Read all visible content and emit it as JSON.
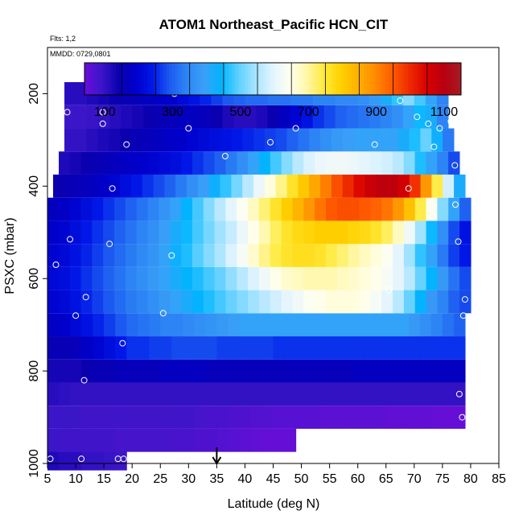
{
  "chart_data": {
    "type": "heatmap",
    "title": "ATOM1 Northeast_Pacific HCN_CIT",
    "flights_label": "Flts: 1,2",
    "date_label": "MMDD: 0729,0801",
    "xlabel": "Latitude (deg N)",
    "ylabel": "PSXC (mbar)",
    "xlim": [
      5,
      85
    ],
    "ylim": [
      1000,
      100
    ],
    "x_ticks": [
      5,
      10,
      15,
      20,
      25,
      30,
      35,
      40,
      45,
      50,
      55,
      60,
      65,
      70,
      75,
      80,
      85
    ],
    "y_ticks": [
      200,
      400,
      600,
      800,
      1000
    ],
    "y_tick_labels": [
      "200",
      "400",
      "600",
      "800",
      "1000"
    ],
    "marker_latitude": 35,
    "colorbar": {
      "range": [
        40,
        1150
      ],
      "tick_values": [
        100,
        300,
        500,
        700,
        900,
        1100
      ],
      "tick_labels": [
        "100",
        "300",
        "500",
        "700",
        "900",
        "1100"
      ],
      "colors": [
        "#6a0dd8",
        "#3b16c8",
        "#0a00b0",
        "#0000cc",
        "#0018e8",
        "#1c5cf0",
        "#2e86f5",
        "#3aa0f7",
        "#00b4ff",
        "#5ed0ff",
        "#a8e4ff",
        "#e2f4ff",
        "#fffff0",
        "#fff7a8",
        "#ffea3a",
        "#ffd000",
        "#ffb000",
        "#ff8a00",
        "#ff5a00",
        "#ee2a00",
        "#d80000",
        "#b80010",
        "#a51c24"
      ]
    },
    "rows": [
      {
        "p": 990,
        "lat_range": [
          5,
          19
        ],
        "values": [
          120,
          110,
          110,
          100,
          100,
          95,
          90
        ]
      },
      {
        "p": 950,
        "lat_range": [
          5,
          49
        ],
        "values": [
          90,
          85,
          85,
          85,
          85,
          85,
          80,
          80,
          80,
          80,
          80,
          75,
          75,
          70,
          70,
          65,
          60,
          55,
          50,
          45,
          45,
          45
        ]
      },
      {
        "p": 900,
        "lat_range": [
          5,
          79
        ],
        "values": [
          90,
          90,
          90,
          85,
          85,
          85,
          85,
          85,
          85,
          85,
          85,
          85,
          85,
          80,
          75,
          75,
          70,
          70,
          65,
          65,
          60,
          60,
          60,
          60,
          55,
          55,
          55,
          55,
          55,
          55,
          50,
          50,
          50,
          50,
          45,
          45,
          45
        ]
      },
      {
        "p": 850,
        "lat_range": [
          5,
          79
        ],
        "values": [
          110,
          105,
          100,
          100,
          100,
          100,
          100,
          100,
          100,
          100,
          100,
          100,
          100,
          100,
          100,
          100,
          100,
          100,
          100,
          100,
          100,
          100,
          100,
          100,
          100,
          100,
          100,
          100,
          100,
          100,
          100,
          100,
          100,
          100,
          100,
          100,
          100
        ]
      },
      {
        "p": 800,
        "lat_range": [
          5,
          79
        ],
        "values": [
          130,
          130,
          130,
          140,
          150,
          150,
          160,
          160,
          160,
          160,
          170,
          170,
          170,
          170,
          160,
          160,
          160,
          160,
          160,
          160,
          160,
          160,
          160,
          160,
          160,
          160,
          160,
          170,
          170,
          170,
          170,
          170,
          170,
          170,
          170,
          170,
          170
        ]
      },
      {
        "p": 750,
        "lat_range": [
          5,
          79
        ],
        "values": [
          150,
          150,
          160,
          180,
          200,
          220,
          240,
          260,
          260,
          270,
          270,
          280,
          280,
          280,
          280,
          270,
          270,
          270,
          270,
          270,
          260,
          260,
          260,
          260,
          260,
          260,
          260,
          260,
          260,
          260,
          260,
          260,
          260,
          260,
          260,
          260,
          260
        ]
      },
      {
        "p": 700,
        "lat_range": [
          5,
          79
        ],
        "values": [
          180,
          190,
          210,
          230,
          250,
          270,
          290,
          310,
          320,
          330,
          340,
          340,
          350,
          360,
          370,
          380,
          390,
          400,
          400,
          400,
          400,
          400,
          400,
          400,
          400,
          400,
          400,
          400,
          400,
          400,
          400,
          400,
          380,
          360,
          340,
          320,
          300
        ]
      },
      {
        "p": 650,
        "lat_range": [
          5,
          80
        ],
        "values": [
          200,
          210,
          230,
          250,
          270,
          290,
          310,
          330,
          340,
          360,
          380,
          400,
          420,
          440,
          460,
          480,
          500,
          520,
          540,
          560,
          580,
          600,
          620,
          640,
          650,
          660,
          660,
          660,
          650,
          630,
          600,
          560,
          500,
          440,
          380,
          340,
          300,
          280
        ]
      },
      {
        "p": 600,
        "lat_range": [
          5,
          80
        ],
        "values": [
          210,
          220,
          240,
          260,
          280,
          300,
          320,
          340,
          360,
          380,
          400,
          420,
          440,
          460,
          480,
          500,
          530,
          560,
          590,
          620,
          650,
          670,
          680,
          690,
          690,
          690,
          680,
          670,
          660,
          650,
          630,
          600,
          560,
          500,
          440,
          380,
          320,
          280
        ]
      },
      {
        "p": 550,
        "lat_range": [
          5,
          80
        ],
        "values": [
          200,
          210,
          230,
          250,
          270,
          290,
          310,
          330,
          350,
          370,
          400,
          430,
          460,
          490,
          520,
          550,
          590,
          630,
          670,
          710,
          740,
          760,
          770,
          770,
          760,
          740,
          720,
          700,
          680,
          660,
          640,
          600,
          540,
          470,
          400,
          330,
          270,
          240
        ]
      },
      {
        "p": 500,
        "lat_range": [
          5,
          80
        ],
        "values": [
          190,
          200,
          220,
          240,
          260,
          280,
          300,
          320,
          340,
          360,
          390,
          420,
          450,
          480,
          510,
          540,
          570,
          610,
          650,
          690,
          730,
          760,
          780,
          790,
          800,
          800,
          800,
          790,
          780,
          760,
          730,
          680,
          620,
          540,
          450,
          360,
          280,
          230
        ]
      },
      {
        "p": 450,
        "lat_range": [
          5,
          80
        ],
        "values": [
          170,
          180,
          200,
          220,
          240,
          260,
          280,
          300,
          320,
          340,
          370,
          400,
          440,
          480,
          520,
          560,
          600,
          640,
          680,
          720,
          760,
          800,
          840,
          880,
          920,
          950,
          960,
          960,
          950,
          940,
          920,
          880,
          820,
          740,
          640,
          520,
          400,
          300
        ]
      },
      {
        "p": 400,
        "lat_range": [
          6,
          79
        ],
        "values": [
          140,
          150,
          160,
          170,
          180,
          200,
          220,
          240,
          260,
          280,
          300,
          330,
          360,
          390,
          430,
          470,
          510,
          560,
          610,
          660,
          710,
          760,
          810,
          860,
          910,
          960,
          1000,
          1040,
          1070,
          1090,
          1090,
          1060,
          990,
          880,
          740,
          580,
          420
        ]
      },
      {
        "p": 350,
        "lat_range": [
          7,
          78
        ],
        "values": [
          120,
          130,
          140,
          150,
          160,
          170,
          180,
          190,
          200,
          210,
          220,
          240,
          260,
          280,
          300,
          330,
          360,
          400,
          440,
          480,
          520,
          560,
          590,
          610,
          620,
          620,
          610,
          600,
          590,
          580,
          560,
          520,
          460,
          400,
          340,
          280
        ]
      },
      {
        "p": 300,
        "lat_range": [
          8,
          77
        ],
        "values": [
          100,
          100,
          110,
          120,
          130,
          140,
          150,
          160,
          170,
          180,
          190,
          200,
          210,
          220,
          230,
          240,
          250,
          260,
          270,
          280,
          300,
          320,
          340,
          360,
          380,
          390,
          400,
          400,
          400,
          400,
          420,
          460,
          500,
          430,
          330
        ]
      },
      {
        "p": 250,
        "lat_range": [
          8,
          76
        ],
        "values": [
          90,
          90,
          95,
          100,
          110,
          120,
          130,
          140,
          150,
          160,
          170,
          170,
          160,
          140,
          120,
          110,
          110,
          120,
          140,
          170,
          200,
          230,
          260,
          280,
          300,
          310,
          320,
          330,
          340,
          360,
          400,
          450,
          420,
          340
        ]
      },
      {
        "p": 200,
        "lat_range": [
          8,
          76
        ],
        "values": [
          110,
          110,
          120,
          130,
          140,
          150,
          160,
          170,
          180,
          190,
          210,
          230,
          250,
          270,
          290,
          300,
          310,
          310,
          320,
          320,
          330,
          330,
          340,
          340,
          350,
          350,
          360,
          380,
          420,
          470,
          520,
          480,
          400,
          340
        ]
      },
      {
        "p": 175,
        "lat_range": [
          27,
          28
        ],
        "values": [
          230
        ]
      }
    ],
    "sample_points": [
      [
        5.5,
        990
      ],
      [
        11,
        990
      ],
      [
        17.5,
        990
      ],
      [
        18.5,
        990
      ],
      [
        6.5,
        570
      ],
      [
        8.5,
        240
      ],
      [
        9,
        515
      ],
      [
        10,
        680
      ],
      [
        11.5,
        820
      ],
      [
        11.8,
        640
      ],
      [
        14.8,
        240
      ],
      [
        14.8,
        265
      ],
      [
        16,
        525
      ],
      [
        16.5,
        405
      ],
      [
        18.3,
        740
      ],
      [
        19,
        310
      ],
      [
        25.5,
        675
      ],
      [
        27,
        550
      ],
      [
        27.5,
        200
      ],
      [
        30,
        275
      ],
      [
        36.5,
        335
      ],
      [
        44.5,
        305
      ],
      [
        49,
        275
      ],
      [
        63,
        310
      ],
      [
        65.5,
        625
      ],
      [
        67.5,
        215
      ],
      [
        69,
        405
      ],
      [
        70.5,
        250
      ],
      [
        72.5,
        265
      ],
      [
        73.5,
        315
      ],
      [
        74.5,
        275
      ],
      [
        76.5,
        260
      ],
      [
        77.2,
        355
      ],
      [
        77.3,
        440
      ],
      [
        77.8,
        520
      ],
      [
        78,
        850
      ],
      [
        78.5,
        900
      ],
      [
        78.7,
        680
      ],
      [
        79,
        645
      ]
    ]
  }
}
